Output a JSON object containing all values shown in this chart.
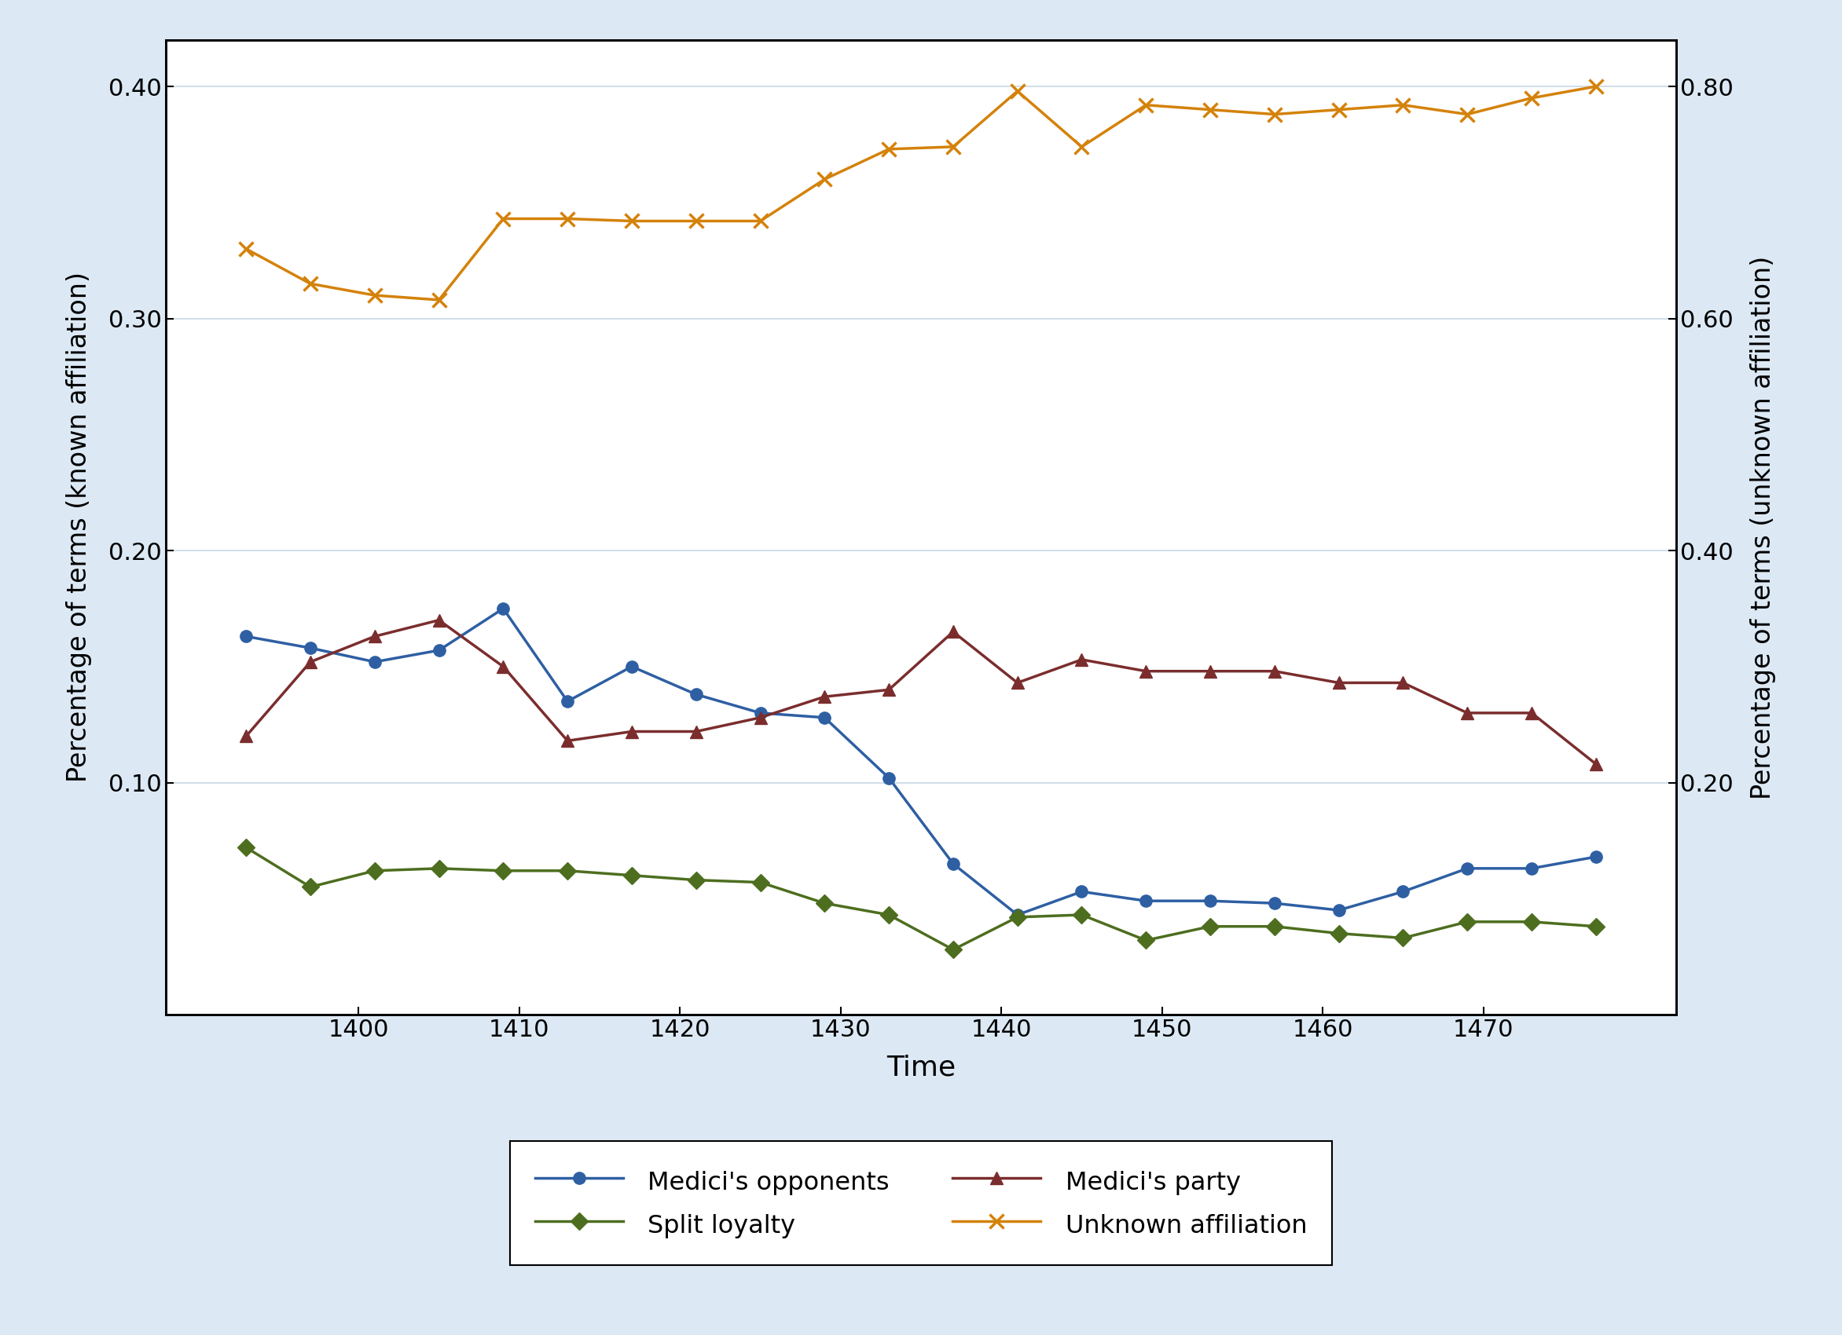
{
  "x": [
    1393,
    1397,
    1401,
    1405,
    1409,
    1413,
    1417,
    1421,
    1425,
    1429,
    1433,
    1437,
    1441,
    1445,
    1449,
    1453,
    1457,
    1461,
    1465,
    1469,
    1473,
    1477
  ],
  "medici_opponents": [
    0.163,
    0.158,
    0.152,
    0.157,
    0.175,
    0.135,
    0.15,
    0.138,
    0.13,
    0.128,
    0.102,
    0.065,
    0.043,
    0.053,
    0.049,
    0.049,
    0.048,
    0.045,
    0.053,
    0.063,
    0.063,
    0.068
  ],
  "medici_party": [
    0.12,
    0.152,
    0.163,
    0.17,
    0.15,
    0.118,
    0.122,
    0.122,
    0.128,
    0.137,
    0.14,
    0.165,
    0.143,
    0.153,
    0.148,
    0.148,
    0.148,
    0.143,
    0.143,
    0.13,
    0.13,
    0.108
  ],
  "split_loyalty": [
    0.072,
    0.055,
    0.062,
    0.063,
    0.062,
    0.062,
    0.06,
    0.058,
    0.057,
    0.048,
    0.043,
    0.028,
    0.042,
    0.043,
    0.032,
    0.038,
    0.038,
    0.035,
    0.033,
    0.04,
    0.04,
    0.038
  ],
  "unknown_affiliation": [
    0.66,
    0.63,
    0.62,
    0.616,
    0.686,
    0.686,
    0.684,
    0.684,
    0.684,
    0.72,
    0.746,
    0.748,
    0.796,
    0.748,
    0.784,
    0.78,
    0.776,
    0.78,
    0.784,
    0.776,
    0.79,
    0.8
  ],
  "medici_opponents_color": "#2e5fa3",
  "medici_party_color": "#7b2d2d",
  "split_loyalty_color": "#4d6e1f",
  "unknown_affiliation_color": "#d4820a",
  "background_color": "#dce9f5",
  "plot_background": "#ffffff",
  "left_ylabel": "Percentage of terms (known affiliation)",
  "right_ylabel": "Percentage of terms (unknown affiliation)",
  "xlabel": "Time",
  "ylim_left": [
    0.0,
    0.42
  ],
  "ylim_right": [
    0.0,
    0.84
  ],
  "yticks_left": [
    0.1,
    0.2,
    0.3,
    0.4
  ],
  "yticks_right": [
    0.2,
    0.4,
    0.6,
    0.8
  ],
  "xticks": [
    1400,
    1410,
    1420,
    1430,
    1440,
    1450,
    1460,
    1470
  ],
  "legend_labels": [
    "Medici's opponents",
    "Medici's party",
    "Split loyalty",
    "Unknown affiliation"
  ],
  "legend_order": [
    0,
    2,
    1,
    3
  ]
}
